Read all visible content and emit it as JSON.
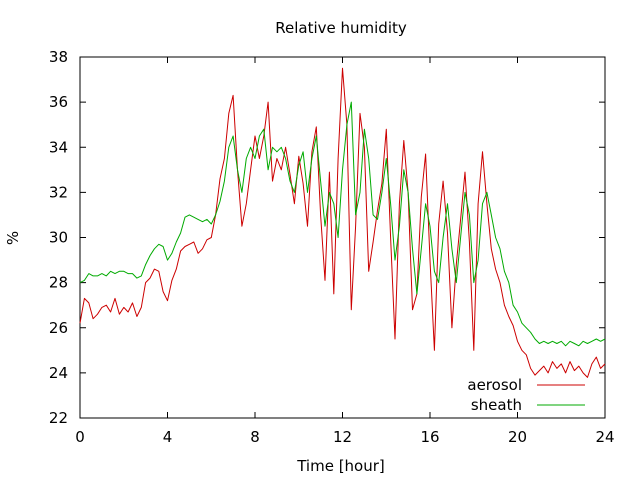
{
  "chart_data": {
    "type": "line",
    "title": "Relative humidity",
    "xlabel": "Time [hour]",
    "ylabel": "%",
    "xlim": [
      0,
      24
    ],
    "ylim": [
      22,
      38
    ],
    "xticks": [
      0,
      4,
      8,
      12,
      16,
      20,
      24
    ],
    "yticks": [
      22,
      24,
      26,
      28,
      30,
      32,
      34,
      36,
      38
    ],
    "grid": false,
    "legend_position": "bottom-right",
    "series": [
      {
        "name": "aerosol",
        "color": "#cc0000",
        "x": [
          0,
          0.2,
          0.4,
          0.6,
          0.8,
          1.0,
          1.2,
          1.4,
          1.6,
          1.8,
          2.0,
          2.2,
          2.4,
          2.6,
          2.8,
          3.0,
          3.2,
          3.4,
          3.6,
          3.8,
          4.0,
          4.2,
          4.4,
          4.6,
          4.8,
          5.0,
          5.2,
          5.4,
          5.6,
          5.8,
          6.0,
          6.2,
          6.4,
          6.6,
          6.8,
          7.0,
          7.2,
          7.4,
          7.6,
          7.8,
          8.0,
          8.2,
          8.4,
          8.6,
          8.8,
          9.0,
          9.2,
          9.4,
          9.6,
          9.8,
          10.0,
          10.2,
          10.4,
          10.6,
          10.8,
          11.0,
          11.2,
          11.4,
          11.6,
          11.8,
          12.0,
          12.2,
          12.4,
          12.6,
          12.8,
          13.0,
          13.2,
          13.4,
          13.6,
          13.8,
          14.0,
          14.2,
          14.4,
          14.6,
          14.8,
          15.0,
          15.2,
          15.4,
          15.6,
          15.8,
          16.0,
          16.2,
          16.4,
          16.6,
          16.8,
          17.0,
          17.2,
          17.4,
          17.6,
          17.8,
          18.0,
          18.2,
          18.4,
          18.6,
          18.8,
          19.0,
          19.2,
          19.4,
          19.6,
          19.8,
          20.0,
          20.2,
          20.4,
          20.6,
          20.8,
          21.0,
          21.2,
          21.4,
          21.6,
          21.8,
          22.0,
          22.2,
          22.4,
          22.6,
          22.8,
          23.0,
          23.2,
          23.4,
          23.6,
          23.8,
          24.0
        ],
        "y": [
          26.2,
          27.3,
          27.1,
          26.4,
          26.6,
          26.9,
          27.0,
          26.7,
          27.3,
          26.6,
          26.9,
          26.7,
          27.1,
          26.5,
          26.9,
          28.0,
          28.2,
          28.6,
          28.5,
          27.6,
          27.2,
          28.1,
          28.6,
          29.4,
          29.6,
          29.7,
          29.8,
          29.3,
          29.5,
          29.9,
          30.0,
          31.0,
          32.6,
          33.5,
          35.5,
          36.3,
          33.0,
          30.5,
          31.5,
          33.0,
          34.5,
          33.5,
          34.5,
          36.0,
          32.5,
          33.5,
          33.0,
          34.0,
          32.8,
          31.5,
          33.6,
          32.4,
          30.5,
          33.8,
          34.9,
          31.0,
          28.1,
          32.9,
          27.5,
          33.5,
          37.5,
          35.0,
          26.8,
          30.5,
          35.5,
          34.0,
          28.5,
          29.8,
          31.2,
          32.4,
          34.8,
          30.0,
          25.5,
          31.5,
          34.3,
          32.0,
          26.8,
          27.5,
          31.8,
          33.7,
          29.0,
          25.0,
          30.6,
          32.5,
          30.2,
          26.0,
          28.8,
          30.8,
          32.9,
          29.8,
          25.0,
          31.5,
          33.8,
          31.5,
          29.5,
          28.6,
          28.0,
          27.0,
          26.5,
          26.1,
          25.4,
          25.0,
          24.8,
          24.2,
          23.9,
          24.1,
          24.3,
          24.0,
          24.5,
          24.2,
          24.4,
          24.0,
          24.5,
          24.1,
          24.3,
          24.0,
          23.8,
          24.4,
          24.7,
          24.2,
          24.4
        ]
      },
      {
        "name": "sheath",
        "color": "#00aa00",
        "x": [
          0,
          0.2,
          0.4,
          0.6,
          0.8,
          1.0,
          1.2,
          1.4,
          1.6,
          1.8,
          2.0,
          2.2,
          2.4,
          2.6,
          2.8,
          3.0,
          3.2,
          3.4,
          3.6,
          3.8,
          4.0,
          4.2,
          4.4,
          4.6,
          4.8,
          5.0,
          5.2,
          5.4,
          5.6,
          5.8,
          6.0,
          6.2,
          6.4,
          6.6,
          6.8,
          7.0,
          7.2,
          7.4,
          7.6,
          7.8,
          8.0,
          8.2,
          8.4,
          8.6,
          8.8,
          9.0,
          9.2,
          9.4,
          9.6,
          9.8,
          10.0,
          10.2,
          10.4,
          10.6,
          10.8,
          11.0,
          11.2,
          11.4,
          11.6,
          11.8,
          12.0,
          12.2,
          12.4,
          12.6,
          12.8,
          13.0,
          13.2,
          13.4,
          13.6,
          13.8,
          14.0,
          14.2,
          14.4,
          14.6,
          14.8,
          15.0,
          15.2,
          15.4,
          15.6,
          15.8,
          16.0,
          16.2,
          16.4,
          16.6,
          16.8,
          17.0,
          17.2,
          17.4,
          17.6,
          17.8,
          18.0,
          18.2,
          18.4,
          18.6,
          18.8,
          19.0,
          19.2,
          19.4,
          19.6,
          19.8,
          20.0,
          20.2,
          20.4,
          20.6,
          20.8,
          21.0,
          21.2,
          21.4,
          21.6,
          21.8,
          22.0,
          22.2,
          22.4,
          22.6,
          22.8,
          23.0,
          23.2,
          23.4,
          23.6,
          23.8,
          24.0
        ],
        "y": [
          28.0,
          28.1,
          28.4,
          28.3,
          28.3,
          28.4,
          28.3,
          28.5,
          28.4,
          28.5,
          28.5,
          28.4,
          28.4,
          28.2,
          28.3,
          28.8,
          29.2,
          29.5,
          29.7,
          29.6,
          29.0,
          29.3,
          29.8,
          30.2,
          30.9,
          31.0,
          30.9,
          30.8,
          30.7,
          30.8,
          30.6,
          31.0,
          31.6,
          32.5,
          34.0,
          34.5,
          33.0,
          32.0,
          33.5,
          34.0,
          33.5,
          34.5,
          34.8,
          33.0,
          34.0,
          33.8,
          34.0,
          33.5,
          32.5,
          32.0,
          33.2,
          33.8,
          32.0,
          33.5,
          34.5,
          32.5,
          30.5,
          32.0,
          31.5,
          30.0,
          33.0,
          35.0,
          36.0,
          31.0,
          32.0,
          34.8,
          33.5,
          31.0,
          30.8,
          32.0,
          33.5,
          31.5,
          29.0,
          30.5,
          33.0,
          32.0,
          29.5,
          27.5,
          29.5,
          31.5,
          30.5,
          28.5,
          28.0,
          30.0,
          31.5,
          29.5,
          28.0,
          30.0,
          32.0,
          31.0,
          28.0,
          29.0,
          31.5,
          32.0,
          31.0,
          30.0,
          29.5,
          28.5,
          28.0,
          27.0,
          26.7,
          26.2,
          26.0,
          25.8,
          25.5,
          25.3,
          25.4,
          25.3,
          25.4,
          25.3,
          25.4,
          25.2,
          25.4,
          25.3,
          25.2,
          25.4,
          25.3,
          25.4,
          25.5,
          25.4,
          25.5
        ]
      }
    ]
  }
}
